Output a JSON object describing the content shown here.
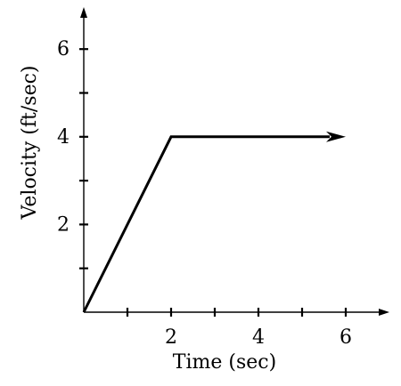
{
  "chart_data": {
    "type": "line",
    "xlabel": "Time (sec)",
    "ylabel": "Velocity (ft/sec)",
    "xlim": [
      0,
      7
    ],
    "ylim": [
      0,
      7
    ],
    "x_major_ticks": [
      2,
      4,
      6
    ],
    "x_minor_ticks": [
      1,
      3,
      5
    ],
    "y_major_ticks": [
      2,
      4,
      6
    ],
    "y_minor_ticks": [
      1,
      3,
      5
    ],
    "x_tick_labels": [
      "2",
      "4",
      "6"
    ],
    "y_tick_labels": [
      "2",
      "4",
      "6"
    ],
    "grid": false,
    "series": [
      {
        "points": [
          [
            0,
            0
          ],
          [
            2,
            4
          ],
          [
            6,
            4
          ]
        ],
        "ends_with_arrow": true,
        "color": "#000000"
      }
    ]
  }
}
